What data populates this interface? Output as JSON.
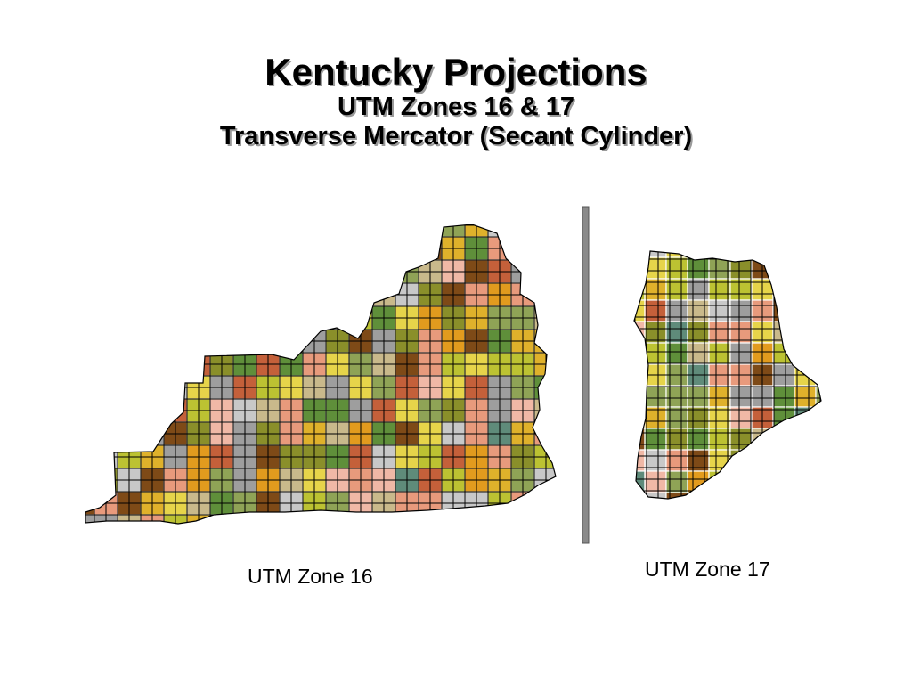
{
  "title": "Kentucky Projections",
  "subtitle_1": "UTM Zones 16 & 17",
  "subtitle_2": "Transverse Mercator (Secant Cylinder)",
  "zone_16": {
    "label": "UTM Zone 16"
  },
  "zone_17": {
    "label": "UTM Zone 17"
  },
  "colors": {
    "olive": "#8a8f2a",
    "yellow_green": "#bcc232",
    "gold": "#dfb12b",
    "orange": "#e29b1e",
    "brown": "#7e4a17",
    "salmon": "#e89a7c",
    "rust": "#c4603a",
    "gray": "#9e9e9e",
    "light_gray": "#c8c8c8",
    "khaki": "#c9b98b",
    "sage": "#8fa356",
    "green": "#5f8f3a",
    "teal": "#5f8b7a",
    "light_yellow": "#e6d44a",
    "pink": "#f0b8a6",
    "grid_line": "#000000",
    "divider": "#8a8a8a"
  }
}
